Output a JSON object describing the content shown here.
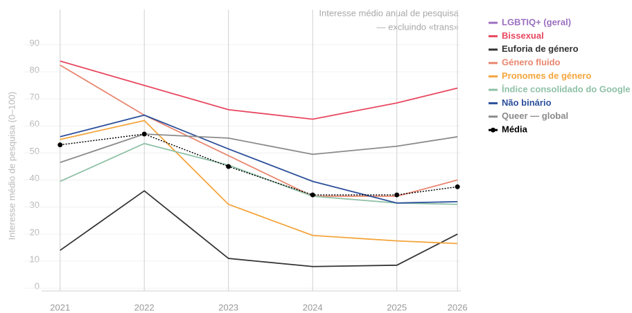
{
  "chart_data": {
    "type": "line",
    "title": [
      "Interesse médio anual de pesquisa",
      "— excluindo «trans»"
    ],
    "y_label": "Interesse médio de pesquisa (0–100)",
    "x": [
      2021,
      2022,
      2023,
      2024,
      2025,
      2025.72
    ],
    "xlim": [
      2020.78,
      2025.76
    ],
    "xticks": [
      2021,
      2022,
      2023,
      2024,
      2025,
      {
        "value": 2025.72,
        "label": "2026"
      }
    ],
    "ylim": [
      -1,
      103
    ],
    "yticks": [
      0,
      10,
      20,
      30,
      40,
      50,
      60,
      70,
      80,
      90
    ],
    "grid": true,
    "legend": "right",
    "series": [
      {
        "name": "LGBTIQ+ (geral)",
        "color": "#9b6fc0",
        "values": [
          null,
          null,
          null,
          null,
          null,
          null
        ]
      },
      {
        "name": "Bissexual",
        "color": "#e8475f",
        "values": [
          84,
          75,
          66,
          62.5,
          68.5,
          74
        ]
      },
      {
        "name": "Euforia de género",
        "color": "#333333",
        "values": [
          14,
          36,
          11,
          8,
          8.5,
          20
        ]
      },
      {
        "name": "Género fluido",
        "color": "#e8866f",
        "values": [
          82.5,
          64,
          49,
          34,
          34,
          40
        ]
      },
      {
        "name": "Pronomes de género",
        "color": "#f4a53c",
        "values": [
          55,
          62,
          31,
          19.5,
          17.5,
          16.5
        ]
      },
      {
        "name": "Índice consolidado do Google",
        "color": "#8fc1a6",
        "values": [
          39.5,
          53.5,
          45.5,
          34,
          31.5,
          31
        ]
      },
      {
        "name": "Não binário",
        "color": "#2b4f9b",
        "values": [
          56,
          64,
          51.5,
          39.5,
          31.5,
          32
        ]
      },
      {
        "name": "Queer — global",
        "color": "#8a8a8a",
        "values": [
          46.5,
          57,
          55.5,
          49.5,
          52.5,
          56
        ]
      },
      {
        "name": "Média",
        "color": "#000000",
        "dashed": true,
        "markers": true,
        "values": [
          53,
          57,
          45,
          34.5,
          34.5,
          37.5
        ]
      }
    ]
  }
}
